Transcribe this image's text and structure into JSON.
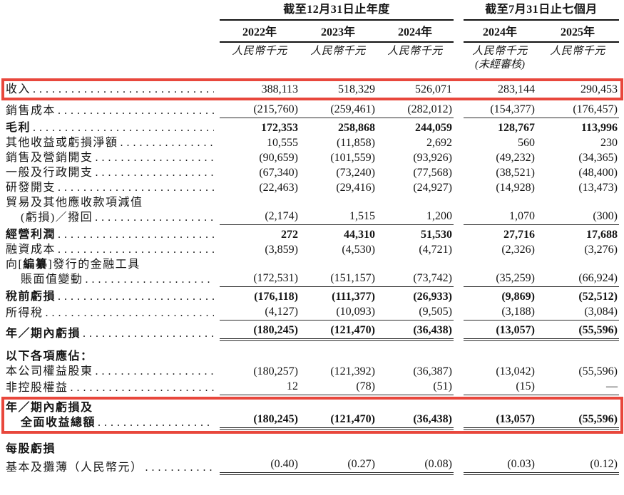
{
  "header": {
    "group_annual": {
      "title": "截至12月31日止年度",
      "years": [
        "2022年",
        "2023年",
        "2024年"
      ]
    },
    "group_interim": {
      "title": "截至7月31日止七個月",
      "years": [
        "2024年",
        "2025年"
      ],
      "note": "(未經審核)"
    },
    "units": [
      "人民幣千元",
      "人民幣千元",
      "人民幣千元",
      "人民幣千元",
      "人民幣千元"
    ]
  },
  "highlight_color": "#e8473c",
  "rows": [
    {
      "name": "row-revenue",
      "highlight": true,
      "bold": false,
      "rule": "none",
      "lines": [
        {
          "text": "收入",
          "dots": true
        }
      ],
      "values": [
        "388,113",
        "518,329",
        "526,071",
        "283,144",
        "290,453"
      ]
    },
    {
      "name": "row-cost-of-sales",
      "rule": "single",
      "lines": [
        {
          "text": "銷售成本",
          "dots": true
        }
      ],
      "values": [
        "(215,760)",
        "(259,461)",
        "(282,012)",
        "(154,377)",
        "(176,457)"
      ]
    },
    {
      "name": "row-gross-profit",
      "bold": true,
      "pad_top": true,
      "rule": "none",
      "lines": [
        {
          "text": "毛利",
          "dots": true
        }
      ],
      "values": [
        "172,353",
        "258,868",
        "244,059",
        "128,767",
        "113,996"
      ]
    },
    {
      "name": "row-other-gains-losses",
      "rule": "none",
      "lines": [
        {
          "text": "其他收益或虧損淨額",
          "dots": true
        }
      ],
      "values": [
        "10,555",
        "(11,858)",
        "2,692",
        "560",
        "230"
      ]
    },
    {
      "name": "row-selling-marketing-expenses",
      "rule": "none",
      "lines": [
        {
          "text": "銷售及營銷開支",
          "dots": true
        }
      ],
      "values": [
        "(90,659)",
        "(101,559)",
        "(93,926)",
        "(49,232)",
        "(34,365)"
      ]
    },
    {
      "name": "row-general-admin-expenses",
      "rule": "none",
      "lines": [
        {
          "text": "一般及行政開支",
          "dots": true
        }
      ],
      "values": [
        "(67,340)",
        "(73,240)",
        "(77,568)",
        "(38,521)",
        "(48,400)"
      ]
    },
    {
      "name": "row-rd-expenses",
      "rule": "none",
      "lines": [
        {
          "text": "研發開支",
          "dots": true
        }
      ],
      "values": [
        "(22,463)",
        "(29,416)",
        "(24,927)",
        "(14,928)",
        "(13,473)"
      ]
    },
    {
      "name": "row-impairment-trade-receivables",
      "rule": "single",
      "lines": [
        {
          "text": "貿易及其他應收款項減值"
        },
        {
          "text": "(虧損)／撥回",
          "indent": true,
          "dots": true
        }
      ],
      "values": [
        "(2,174)",
        "1,515",
        "1,200",
        "1,070",
        "(300)"
      ]
    },
    {
      "name": "row-operating-profit",
      "bold": true,
      "pad_top": true,
      "rule": "none",
      "lines": [
        {
          "text": "經營利潤",
          "dots": true
        }
      ],
      "values": [
        "272",
        "44,310",
        "51,530",
        "27,716",
        "17,688"
      ]
    },
    {
      "name": "row-finance-costs",
      "rule": "none",
      "lines": [
        {
          "text": "融資成本",
          "dots": true
        }
      ],
      "values": [
        "(3,859)",
        "(4,530)",
        "(4,721)",
        "(2,326)",
        "(3,276)"
      ]
    },
    {
      "name": "row-financial-instruments-carrying-change",
      "rule": "single",
      "lines": [
        {
          "segments": [
            {
              "t": "向[",
              "b": false
            },
            {
              "t": "編纂",
              "b": true
            },
            {
              "t": "]發行的金融工具",
              "b": false
            }
          ]
        },
        {
          "text": "賬面值變動",
          "indent": true,
          "dots": true
        }
      ],
      "values": [
        "(172,531)",
        "(151,157)",
        "(73,742)",
        "(35,259)",
        "(66,924)"
      ]
    },
    {
      "name": "row-loss-before-tax",
      "bold": true,
      "pad_top": true,
      "rule": "none",
      "lines": [
        {
          "text": "稅前虧損",
          "dots": true
        }
      ],
      "values": [
        "(176,118)",
        "(111,377)",
        "(26,933)",
        "(9,869)",
        "(52,512)"
      ]
    },
    {
      "name": "row-income-tax",
      "rule": "single",
      "lines": [
        {
          "text": "所得稅",
          "dots": true
        }
      ],
      "values": [
        "(4,127)",
        "(10,093)",
        "(9,505)",
        "(3,188)",
        "(3,084)"
      ]
    },
    {
      "name": "row-loss-for-year-period",
      "bold": true,
      "pad_top": true,
      "rule": "double",
      "lines": [
        {
          "text": "年／期內虧損",
          "dots": true
        }
      ],
      "values": [
        "(180,245)",
        "(121,470)",
        "(36,438)",
        "(13,057)",
        "(55,596)"
      ]
    },
    {
      "name": "row-attributable-heading",
      "bold": true,
      "gap_before": true,
      "rule": "none",
      "lines": [
        {
          "text": "以下各項應佔："
        }
      ],
      "values": null
    },
    {
      "name": "row-equity-shareholders",
      "rule": "none",
      "lines": [
        {
          "text": "本公司權益股東",
          "dots": true
        }
      ],
      "values": [
        "(180,257)",
        "(121,392)",
        "(36,387)",
        "(13,042)",
        "(55,596)"
      ]
    },
    {
      "name": "row-non-controlling-interests",
      "rule": "single",
      "lines": [
        {
          "text": "非控股權益",
          "dots": true
        }
      ],
      "values": [
        "12",
        "(78)",
        "(51)",
        "(15)",
        "—"
      ]
    },
    {
      "name": "row-total-comprehensive-loss",
      "highlight": true,
      "bold": true,
      "rule": "double",
      "lines": [
        {
          "text": "年／期內虧損及"
        },
        {
          "text": "全面收益總額",
          "indent": true,
          "dots": true
        }
      ],
      "values": [
        "(180,245)",
        "(121,470)",
        "(36,438)",
        "(13,057)",
        "(55,596)"
      ]
    },
    {
      "name": "row-loss-per-share-heading",
      "bold": true,
      "gap_before": true,
      "rule": "none",
      "lines": [
        {
          "text": "每股虧損"
        }
      ],
      "values": null
    },
    {
      "name": "row-eps-basic-diluted",
      "rule": "double",
      "lines": [
        {
          "text": "基本及攤薄（人民幣元）",
          "dots": true
        }
      ],
      "values": [
        "(0.40)",
        "(0.27)",
        "(0.08)",
        "(0.03)",
        "(0.12)"
      ]
    }
  ]
}
